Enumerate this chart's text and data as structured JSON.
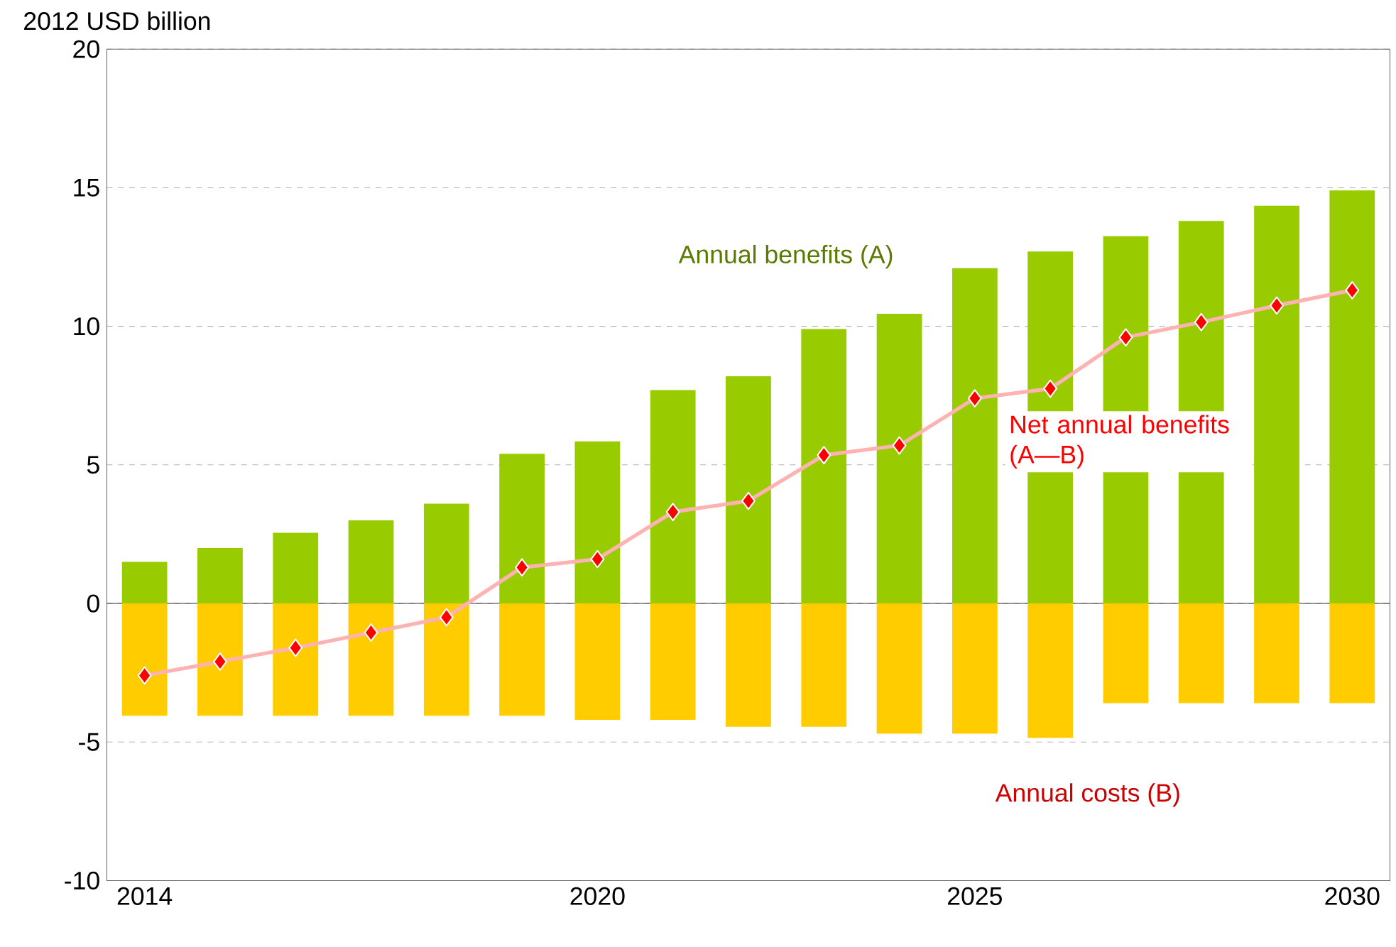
{
  "chart_data": {
    "type": "bar",
    "ylabel": "2012 USD billion",
    "x": [
      2014,
      2015,
      2016,
      2017,
      2018,
      2019,
      2020,
      2021,
      2022,
      2023,
      2024,
      2025,
      2026,
      2027,
      2028,
      2029,
      2030
    ],
    "xlim": [
      2013.5,
      2030.5
    ],
    "xticks": [
      2014,
      2020,
      2025,
      2030
    ],
    "stacked": true,
    "ylim": [
      -10,
      20
    ],
    "yticks": [
      -10,
      -5,
      0,
      5,
      10,
      15,
      20
    ],
    "grid": "y",
    "series": [
      {
        "name": "Annual benefits (A)",
        "color": "#99cc00",
        "values": [
          1.5,
          2.0,
          2.55,
          3.0,
          3.6,
          5.4,
          5.85,
          7.7,
          8.2,
          9.9,
          10.45,
          12.1,
          12.7,
          13.25,
          13.8,
          14.35,
          14.9
        ]
      },
      {
        "name": "Annual costs (B)",
        "color": "#ffcc00",
        "values": [
          -4.05,
          -4.05,
          -4.05,
          -4.05,
          -4.05,
          -4.05,
          -4.2,
          -4.2,
          -4.45,
          -4.45,
          -4.7,
          -4.7,
          -4.85,
          -3.6,
          -3.6,
          -3.6,
          -3.6
        ]
      },
      {
        "name": "Net annual benefits (A—B)",
        "type": "line",
        "marker": "diamond",
        "color": "#ff0000",
        "values": [
          -2.6,
          -2.1,
          -1.6,
          -1.05,
          -0.5,
          1.3,
          1.6,
          3.3,
          3.7,
          5.35,
          5.7,
          7.4,
          7.75,
          9.6,
          10.15,
          10.75,
          11.3
        ]
      }
    ]
  }
}
